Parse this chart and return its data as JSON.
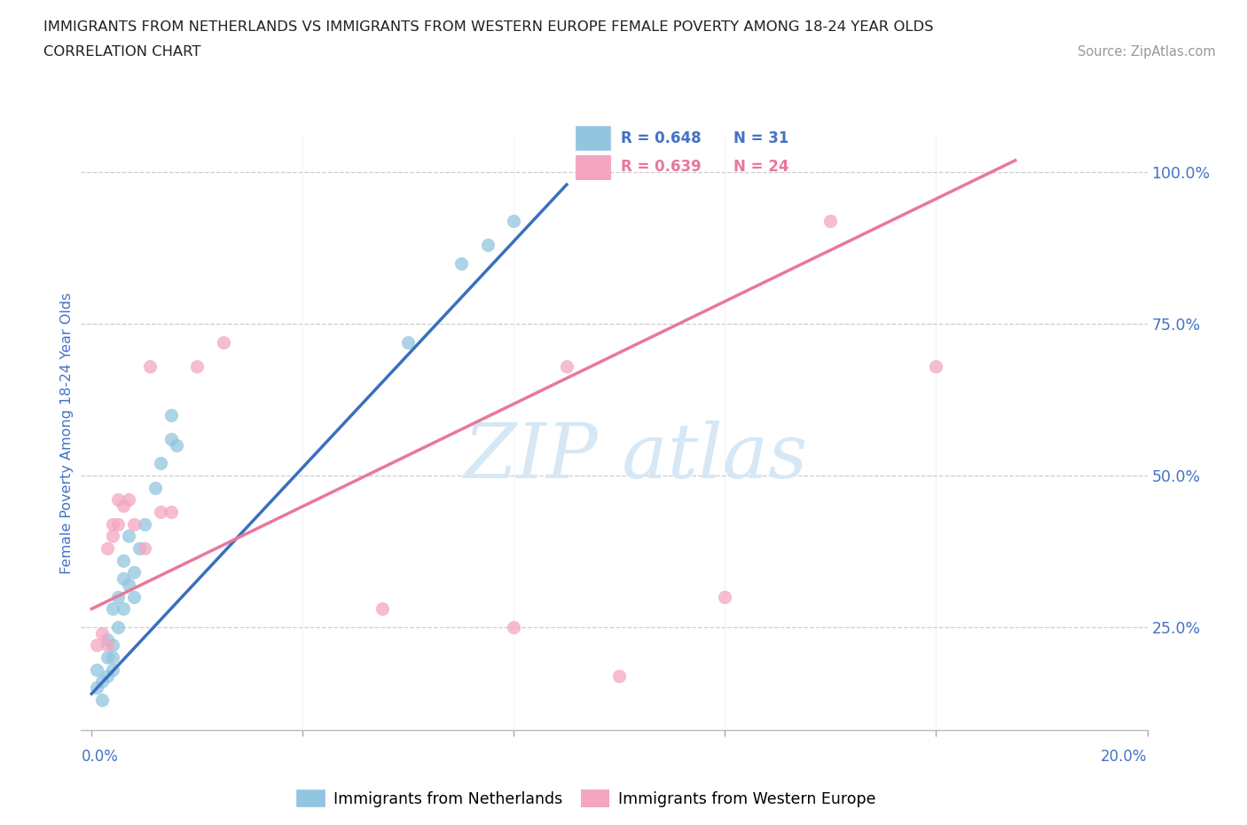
{
  "title_line1": "IMMIGRANTS FROM NETHERLANDS VS IMMIGRANTS FROM WESTERN EUROPE FEMALE POVERTY AMONG 18-24 YEAR OLDS",
  "title_line2": "CORRELATION CHART",
  "source": "Source: ZipAtlas.com",
  "ylabel": "Female Poverty Among 18-24 Year Olds",
  "legend_blue_label": "Immigrants from Netherlands",
  "legend_pink_label": "Immigrants from Western Europe",
  "R_blue": "R = 0.648",
  "N_blue": "N = 31",
  "R_pink": "R = 0.639",
  "N_pink": "N = 24",
  "color_blue": "#92c5de",
  "color_pink": "#f4a6c0",
  "color_blue_line": "#3a6fbe",
  "color_pink_line": "#e8789a",
  "color_text_blue": "#4472c4",
  "watermark_color": "#d6e8f5",
  "blue_scatter_x": [
    0.001,
    0.001,
    0.002,
    0.002,
    0.003,
    0.003,
    0.003,
    0.004,
    0.004,
    0.004,
    0.004,
    0.005,
    0.005,
    0.006,
    0.006,
    0.006,
    0.007,
    0.007,
    0.008,
    0.008,
    0.009,
    0.01,
    0.012,
    0.013,
    0.015,
    0.015,
    0.016,
    0.06,
    0.07,
    0.075,
    0.08
  ],
  "blue_scatter_y": [
    0.15,
    0.18,
    0.13,
    0.16,
    0.17,
    0.2,
    0.23,
    0.18,
    0.2,
    0.22,
    0.28,
    0.25,
    0.3,
    0.33,
    0.36,
    0.28,
    0.32,
    0.4,
    0.3,
    0.34,
    0.38,
    0.42,
    0.48,
    0.52,
    0.56,
    0.6,
    0.55,
    0.72,
    0.85,
    0.88,
    0.92
  ],
  "pink_scatter_x": [
    0.001,
    0.002,
    0.003,
    0.003,
    0.004,
    0.004,
    0.005,
    0.005,
    0.006,
    0.007,
    0.008,
    0.01,
    0.011,
    0.013,
    0.015,
    0.02,
    0.025,
    0.055,
    0.08,
    0.09,
    0.1,
    0.12,
    0.14,
    0.16
  ],
  "pink_scatter_y": [
    0.22,
    0.24,
    0.22,
    0.38,
    0.4,
    0.42,
    0.42,
    0.46,
    0.45,
    0.46,
    0.42,
    0.38,
    0.68,
    0.44,
    0.44,
    0.68,
    0.72,
    0.28,
    0.25,
    0.68,
    0.17,
    0.3,
    0.92,
    0.68
  ],
  "x_min": -0.002,
  "x_max": 0.2,
  "y_min": 0.08,
  "y_max": 1.06,
  "blue_line_x0": 0.0,
  "blue_line_x1": 0.09,
  "blue_line_y0": 0.14,
  "blue_line_y1": 0.98,
  "pink_line_x0": 0.0,
  "pink_line_x1": 0.175,
  "pink_line_y0": 0.28,
  "pink_line_y1": 1.02
}
